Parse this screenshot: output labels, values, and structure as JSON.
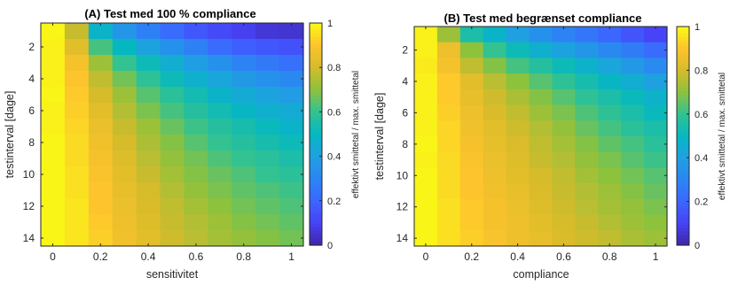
{
  "colormap": {
    "name": "parula",
    "stops": [
      "#3e26a8",
      "#4743f7",
      "#3c66fe",
      "#2b86f3",
      "#1fa1e1",
      "#05b8c0",
      "#33c291",
      "#8dc23d",
      "#d6bb2a",
      "#fdc42d",
      "#f9fb15"
    ]
  },
  "chart_data": [
    {
      "type": "heatmap",
      "title": "(A) Test med 100 % compliance",
      "xlabel": "sensitivitet",
      "ylabel": "testinterval [dage]",
      "x": [
        0,
        0.1,
        0.2,
        0.3,
        0.4,
        0.5,
        0.6,
        0.7,
        0.8,
        0.9,
        1.0
      ],
      "y": [
        1,
        2,
        3,
        4,
        5,
        6,
        7,
        8,
        9,
        10,
        11,
        12,
        13,
        14
      ],
      "xlim": [
        -0.05,
        1.05
      ],
      "ylim": [
        0.5,
        14.5
      ],
      "x_ticks": [
        "0",
        "0.2",
        "0.4",
        "0.6",
        "0.8",
        "1"
      ],
      "x_tick_values": [
        0,
        0.2,
        0.4,
        0.6,
        0.8,
        1.0
      ],
      "y_ticks": [
        "2",
        "4",
        "6",
        "8",
        "10",
        "12",
        "14"
      ],
      "y_tick_values": [
        2,
        4,
        6,
        8,
        10,
        12,
        14
      ],
      "y_reversed": true,
      "clim": [
        0,
        1
      ],
      "colorbar": {
        "label": "effektivt smittetal / max. smittetal",
        "ticks": [
          "0",
          "0.2",
          "0.4",
          "0.6",
          "0.8",
          "1"
        ],
        "tick_values": [
          0,
          0.2,
          0.4,
          0.6,
          0.8,
          1.0
        ]
      },
      "values": [
        [
          0.99,
          0.78,
          0.48,
          0.36,
          0.28,
          0.22,
          0.16,
          0.12,
          0.09,
          0.06,
          0.05
        ],
        [
          0.98,
          0.83,
          0.62,
          0.5,
          0.41,
          0.34,
          0.28,
          0.22,
          0.18,
          0.16,
          0.14
        ],
        [
          0.98,
          0.88,
          0.72,
          0.6,
          0.52,
          0.45,
          0.39,
          0.34,
          0.29,
          0.26,
          0.23
        ],
        [
          0.98,
          0.9,
          0.77,
          0.67,
          0.59,
          0.52,
          0.46,
          0.42,
          0.37,
          0.34,
          0.31
        ],
        [
          0.99,
          0.91,
          0.8,
          0.72,
          0.64,
          0.58,
          0.53,
          0.48,
          0.44,
          0.41,
          0.38
        ],
        [
          0.98,
          0.92,
          0.83,
          0.75,
          0.68,
          0.62,
          0.57,
          0.53,
          0.49,
          0.46,
          0.44
        ],
        [
          0.98,
          0.93,
          0.85,
          0.78,
          0.72,
          0.66,
          0.61,
          0.57,
          0.54,
          0.51,
          0.48
        ],
        [
          0.99,
          0.94,
          0.87,
          0.8,
          0.74,
          0.69,
          0.64,
          0.6,
          0.57,
          0.54,
          0.52
        ],
        [
          0.99,
          0.94,
          0.88,
          0.82,
          0.76,
          0.71,
          0.67,
          0.63,
          0.6,
          0.58,
          0.55
        ],
        [
          0.99,
          0.95,
          0.89,
          0.83,
          0.78,
          0.73,
          0.69,
          0.66,
          0.63,
          0.6,
          0.58
        ],
        [
          0.99,
          0.95,
          0.9,
          0.84,
          0.8,
          0.75,
          0.71,
          0.68,
          0.65,
          0.63,
          0.61
        ],
        [
          0.99,
          0.96,
          0.9,
          0.85,
          0.81,
          0.77,
          0.73,
          0.7,
          0.67,
          0.65,
          0.63
        ],
        [
          0.99,
          0.96,
          0.91,
          0.86,
          0.82,
          0.78,
          0.75,
          0.72,
          0.69,
          0.67,
          0.65
        ],
        [
          0.99,
          0.96,
          0.92,
          0.87,
          0.83,
          0.79,
          0.76,
          0.73,
          0.71,
          0.69,
          0.67
        ]
      ]
    },
    {
      "type": "heatmap",
      "title": "(B) Test med begrænset compliance",
      "xlabel": "compliance",
      "ylabel": "testinterval [dage]",
      "x": [
        0,
        0.1,
        0.2,
        0.3,
        0.4,
        0.5,
        0.6,
        0.7,
        0.8,
        0.9,
        1.0
      ],
      "y": [
        1,
        2,
        3,
        4,
        5,
        6,
        7,
        8,
        9,
        10,
        11,
        12,
        13,
        14
      ],
      "xlim": [
        -0.05,
        1.05
      ],
      "ylim": [
        0.5,
        14.5
      ],
      "x_ticks": [
        "0",
        "0.2",
        "0.4",
        "0.6",
        "0.8",
        "1"
      ],
      "x_tick_values": [
        0,
        0.2,
        0.4,
        0.6,
        0.8,
        1.0
      ],
      "y_ticks": [
        "2",
        "4",
        "6",
        "8",
        "10",
        "12",
        "14"
      ],
      "y_tick_values": [
        2,
        4,
        6,
        8,
        10,
        12,
        14
      ],
      "y_reversed": true,
      "clim": [
        0,
        1
      ],
      "colorbar": {
        "label": "effektivt smittetal / max. smittetal",
        "ticks": [
          "0",
          "0.2",
          "0.4",
          "0.6",
          "0.8",
          "1"
        ],
        "tick_values": [
          0,
          0.2,
          0.4,
          0.6,
          0.8,
          1.0
        ]
      },
      "values": [
        [
          0.98,
          0.72,
          0.55,
          0.48,
          0.4,
          0.34,
          0.29,
          0.25,
          0.2,
          0.15,
          0.1
        ],
        [
          0.98,
          0.86,
          0.7,
          0.6,
          0.52,
          0.46,
          0.41,
          0.36,
          0.31,
          0.27,
          0.22
        ],
        [
          0.97,
          0.88,
          0.77,
          0.69,
          0.62,
          0.57,
          0.52,
          0.47,
          0.42,
          0.37,
          0.32
        ],
        [
          0.98,
          0.91,
          0.83,
          0.76,
          0.7,
          0.64,
          0.59,
          0.54,
          0.49,
          0.45,
          0.4
        ],
        [
          0.98,
          0.91,
          0.84,
          0.79,
          0.74,
          0.69,
          0.64,
          0.59,
          0.55,
          0.51,
          0.47
        ],
        [
          0.98,
          0.92,
          0.86,
          0.81,
          0.77,
          0.72,
          0.68,
          0.63,
          0.59,
          0.55,
          0.51
        ],
        [
          0.98,
          0.93,
          0.87,
          0.83,
          0.79,
          0.75,
          0.71,
          0.66,
          0.62,
          0.58,
          0.55
        ],
        [
          0.99,
          0.93,
          0.88,
          0.84,
          0.81,
          0.77,
          0.73,
          0.69,
          0.65,
          0.62,
          0.58
        ],
        [
          0.98,
          0.94,
          0.89,
          0.85,
          0.82,
          0.78,
          0.75,
          0.71,
          0.68,
          0.64,
          0.61
        ],
        [
          0.99,
          0.94,
          0.9,
          0.86,
          0.83,
          0.8,
          0.77,
          0.73,
          0.7,
          0.67,
          0.64
        ],
        [
          0.99,
          0.94,
          0.9,
          0.87,
          0.84,
          0.81,
          0.78,
          0.75,
          0.72,
          0.69,
          0.66
        ],
        [
          0.99,
          0.95,
          0.91,
          0.88,
          0.85,
          0.82,
          0.79,
          0.76,
          0.73,
          0.71,
          0.68
        ],
        [
          0.99,
          0.95,
          0.91,
          0.88,
          0.86,
          0.83,
          0.8,
          0.78,
          0.75,
          0.72,
          0.7
        ],
        [
          0.99,
          0.95,
          0.92,
          0.89,
          0.86,
          0.84,
          0.81,
          0.79,
          0.77,
          0.74,
          0.72
        ]
      ]
    }
  ]
}
